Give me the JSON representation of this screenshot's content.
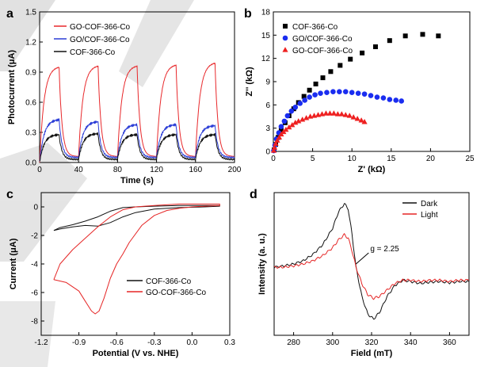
{
  "chart_data": [
    {
      "panel": "a",
      "type": "line",
      "xlabel": "Time (s)",
      "ylabel": "Photocurrent (μA)",
      "xlim": [
        0,
        200
      ],
      "ylim": [
        0,
        1.5
      ],
      "xticks": [
        0,
        40,
        80,
        120,
        160,
        200
      ],
      "yticks": [
        0.0,
        0.3,
        0.6,
        0.9,
        1.2,
        1.5
      ],
      "ytick_labels": [
        "0.0",
        "0.3",
        "0.6",
        "0.9",
        "1.2",
        "1.5"
      ],
      "light_cycles": {
        "period_s": 40,
        "on_start_s": [
          0,
          40,
          80,
          120,
          160
        ],
        "on_duration_s": 20
      },
      "series": [
        {
          "name": "GO-COF-366-Co",
          "color": "#e8282b",
          "baseline": 0.0,
          "peak": [
            0.96,
            0.97,
            0.97,
            0.98,
            1.0
          ],
          "dark": 0.06
        },
        {
          "name": "GO/COF-366-Co",
          "color": "#2a3cd6",
          "baseline": 0.0,
          "peak": [
            0.43,
            0.41,
            0.38,
            0.38,
            0.37
          ],
          "dark": 0.05
        },
        {
          "name": "COF-366-Co",
          "color": "#111111",
          "baseline": 0.0,
          "peak": [
            0.28,
            0.29,
            0.28,
            0.28,
            0.28
          ],
          "dark": 0.03
        }
      ]
    },
    {
      "panel": "b",
      "type": "scatter",
      "xlabel": "Z' (kΩ)",
      "ylabel": "Z'' (kΩ)",
      "xlim": [
        0,
        25
      ],
      "ylim": [
        0,
        18
      ],
      "xticks": [
        0,
        5,
        10,
        15,
        20,
        25
      ],
      "yticks": [
        0,
        3,
        6,
        9,
        12,
        15,
        18
      ],
      "series": [
        {
          "name": "COF-366-Co",
          "marker": "square",
          "color": "#000000",
          "x": [
            0.1,
            0.3,
            0.6,
            1.0,
            1.5,
            2.0,
            2.6,
            3.2,
            3.9,
            4.6,
            5.4,
            6.3,
            7.3,
            8.5,
            9.8,
            11.3,
            13.0,
            14.8,
            16.8,
            19.0,
            21.0
          ],
          "y": [
            0.2,
            0.9,
            1.8,
            2.7,
            3.7,
            4.6,
            5.5,
            6.3,
            7.1,
            7.9,
            8.7,
            9.5,
            10.3,
            11.1,
            11.9,
            12.7,
            13.5,
            14.3,
            14.9,
            15.1,
            14.9
          ]
        },
        {
          "name": "GO/COF-366-Co",
          "marker": "circle",
          "color": "#1a2df0",
          "x": [
            0.05,
            0.2,
            0.4,
            0.7,
            1.0,
            1.4,
            1.8,
            2.3,
            2.8,
            3.4,
            4.0,
            4.6,
            5.3,
            6.0,
            6.8,
            7.6,
            8.4,
            9.2,
            10.0,
            10.8,
            11.6,
            12.4,
            13.2,
            14.0,
            14.8,
            15.6,
            16.3
          ],
          "y": [
            0.1,
            0.8,
            1.6,
            2.4,
            3.2,
            3.9,
            4.6,
            5.2,
            5.7,
            6.2,
            6.6,
            7.0,
            7.3,
            7.5,
            7.6,
            7.7,
            7.7,
            7.7,
            7.6,
            7.5,
            7.4,
            7.2,
            7.0,
            6.9,
            6.7,
            6.6,
            6.5
          ]
        },
        {
          "name": "GO-COF-366-Co",
          "marker": "triangle",
          "color": "#ee2020",
          "x": [
            0.05,
            0.15,
            0.3,
            0.5,
            0.75,
            1.0,
            1.3,
            1.6,
            2.0,
            2.4,
            2.8,
            3.2,
            3.7,
            4.2,
            4.7,
            5.2,
            5.7,
            6.2,
            6.7,
            7.2,
            7.7,
            8.2,
            8.7,
            9.2,
            9.7,
            10.2,
            10.7,
            11.2,
            11.6
          ],
          "y": [
            0.1,
            0.5,
            1.0,
            1.4,
            1.8,
            2.2,
            2.5,
            2.8,
            3.1,
            3.4,
            3.7,
            3.9,
            4.1,
            4.3,
            4.5,
            4.6,
            4.7,
            4.8,
            4.9,
            4.9,
            4.9,
            4.8,
            4.8,
            4.7,
            4.6,
            4.4,
            4.2,
            4.0,
            3.8
          ]
        }
      ]
    },
    {
      "panel": "c",
      "type": "line",
      "xlabel": "Potential (V vs. NHE)",
      "ylabel": "Current (μA)",
      "xlim": [
        -1.2,
        0.3
      ],
      "ylim": [
        -9,
        1
      ],
      "xticks": [
        -1.2,
        -0.9,
        -0.6,
        -0.3,
        0.0,
        0.3
      ],
      "xtick_labels": [
        "-1.2",
        "-0.9",
        "-0.6",
        "-0.3",
        "0.0",
        "0.3"
      ],
      "yticks": [
        0,
        -2,
        -4,
        -6,
        -8
      ],
      "series": [
        {
          "name": "COF-366-Co",
          "color": "#111111",
          "x": [
            -1.1,
            -1.05,
            -0.95,
            -0.85,
            -0.75,
            -0.65,
            -0.55,
            -0.45,
            -0.3,
            -0.1,
            0.1,
            0.22,
            0.22,
            0.1,
            -0.1,
            -0.3,
            -0.45,
            -0.55,
            -0.65,
            -0.75,
            -0.85,
            -0.95,
            -1.05,
            -1.1
          ],
          "y": [
            -1.65,
            -1.55,
            -1.4,
            -1.3,
            -1.35,
            -1.1,
            -0.7,
            -0.4,
            -0.15,
            -0.05,
            0.0,
            0.05,
            0.1,
            0.1,
            0.1,
            0.05,
            0.0,
            -0.05,
            -0.3,
            -0.7,
            -1.0,
            -1.25,
            -1.45,
            -1.65
          ]
        },
        {
          "name": "GO-COF-366-Co",
          "color": "#e52525",
          "x": [
            -1.1,
            -1.0,
            -0.9,
            -0.85,
            -0.8,
            -0.77,
            -0.74,
            -0.7,
            -0.65,
            -0.6,
            -0.55,
            -0.5,
            -0.4,
            -0.3,
            -0.2,
            -0.1,
            0.0,
            0.1,
            0.22,
            0.22,
            0.1,
            -0.1,
            -0.3,
            -0.45,
            -0.55,
            -0.65,
            -0.75,
            -0.85,
            -0.95,
            -1.05,
            -1.1
          ],
          "y": [
            -5.1,
            -5.3,
            -5.9,
            -6.6,
            -7.3,
            -7.5,
            -7.3,
            -6.4,
            -5.0,
            -4.0,
            -3.3,
            -2.5,
            -1.3,
            -0.6,
            -0.25,
            -0.1,
            0.0,
            0.05,
            0.1,
            0.2,
            0.2,
            0.2,
            0.1,
            0.0,
            -0.2,
            -0.7,
            -1.4,
            -2.2,
            -3.0,
            -4.0,
            -5.1
          ]
        }
      ]
    },
    {
      "panel": "d",
      "type": "line",
      "xlabel": "Field (mT)",
      "ylabel": "Intensity (a. u.)",
      "xlim": [
        270,
        370
      ],
      "xticks": [
        280,
        300,
        320,
        340,
        360
      ],
      "annotation": "g = 2.25",
      "series": [
        {
          "name": "Dark",
          "color": "#111111",
          "x": [
            270,
            275,
            280,
            285,
            290,
            295,
            300,
            303,
            306,
            308,
            310,
            312,
            315,
            318,
            321,
            324,
            328,
            332,
            336,
            340,
            345,
            350,
            355,
            360,
            365,
            370
          ],
          "y": [
            0.0,
            0.02,
            0.05,
            0.1,
            0.2,
            0.35,
            0.6,
            0.85,
            0.98,
            0.9,
            0.5,
            0.0,
            -0.45,
            -0.72,
            -0.8,
            -0.7,
            -0.45,
            -0.28,
            -0.2,
            -0.22,
            -0.25,
            -0.23,
            -0.22,
            -0.24,
            -0.22,
            -0.22
          ]
        },
        {
          "name": "Light",
          "color": "#e52525",
          "x": [
            270,
            275,
            280,
            285,
            290,
            295,
            300,
            303,
            306,
            308,
            310,
            312,
            315,
            318,
            321,
            324,
            328,
            332,
            336,
            340,
            345,
            350,
            355,
            360,
            365,
            370
          ],
          "y": [
            0.0,
            0.0,
            0.02,
            0.05,
            0.1,
            0.18,
            0.3,
            0.42,
            0.5,
            0.45,
            0.25,
            0.0,
            -0.25,
            -0.42,
            -0.48,
            -0.45,
            -0.35,
            -0.25,
            -0.2,
            -0.2,
            -0.22,
            -0.2,
            -0.2,
            -0.22,
            -0.2,
            -0.2
          ]
        }
      ]
    }
  ]
}
